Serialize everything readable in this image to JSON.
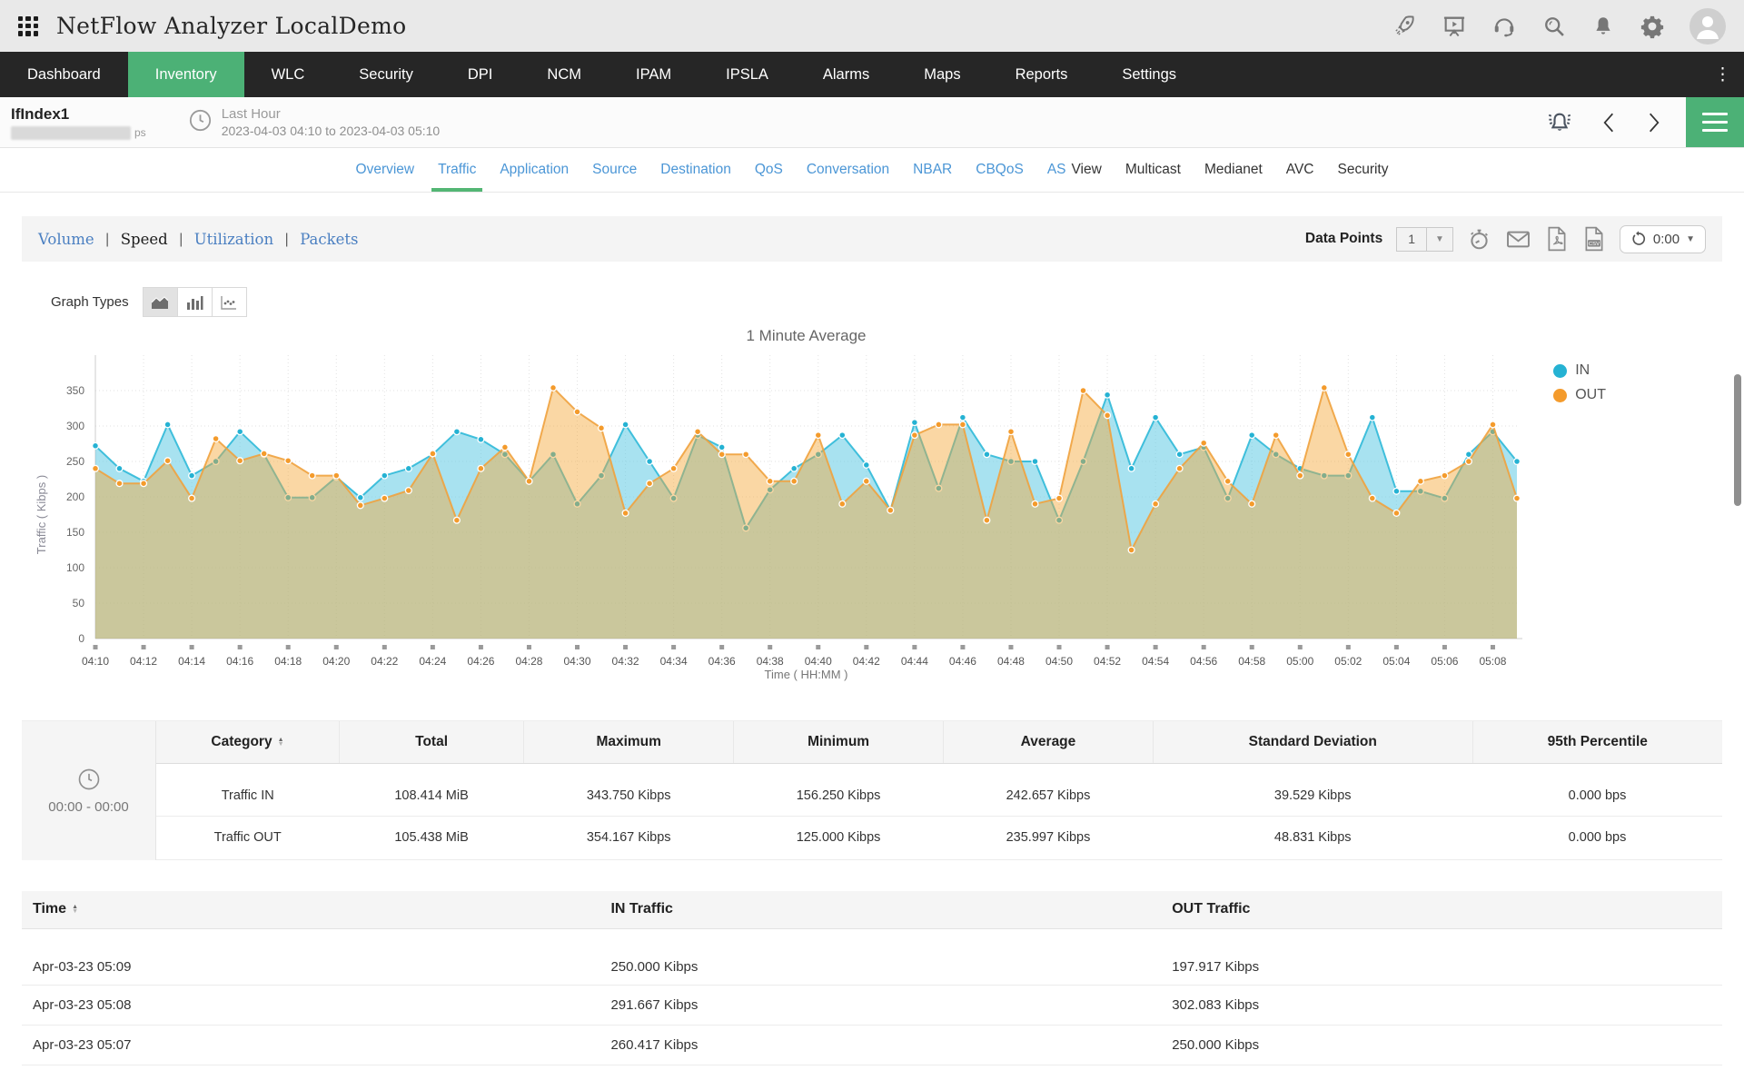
{
  "topbar": {
    "title": "NetFlow Analyzer LocalDemo"
  },
  "navbar": {
    "items": [
      "Dashboard",
      "Inventory",
      "WLC",
      "Security",
      "DPI",
      "NCM",
      "IPAM",
      "IPSLA",
      "Alarms",
      "Maps",
      "Reports",
      "Settings"
    ],
    "active": "Inventory"
  },
  "subheader": {
    "interface_name": "IfIndex1",
    "speed_suffix": "ps",
    "period_label": "Last Hour",
    "period_range": "2023-04-03 04:10 to 2023-04-03 05:10"
  },
  "tabs": {
    "items": [
      {
        "label": "Overview",
        "style": "link"
      },
      {
        "label": "Traffic",
        "style": "link",
        "active": true
      },
      {
        "label": "Application",
        "style": "link"
      },
      {
        "label": "Source",
        "style": "link"
      },
      {
        "label": "Destination",
        "style": "link"
      },
      {
        "label": "QoS",
        "style": "link"
      },
      {
        "label": "Conversation",
        "style": "link"
      },
      {
        "label": "NBAR",
        "style": "link"
      },
      {
        "label": "CBQoS",
        "style": "link"
      },
      {
        "label": "AS",
        "style": "link",
        "tight": "r"
      },
      {
        "label": "View",
        "style": "plain",
        "tight": "l"
      },
      {
        "label": "Multicast",
        "style": "plain"
      },
      {
        "label": "Medianet",
        "style": "plain"
      },
      {
        "label": "AVC",
        "style": "plain"
      },
      {
        "label": "Security",
        "style": "plain"
      }
    ]
  },
  "toolbar": {
    "views": [
      {
        "label": "Volume",
        "style": "link"
      },
      {
        "label": "Speed",
        "style": "current"
      },
      {
        "label": "Utilization",
        "style": "link"
      },
      {
        "label": "Packets",
        "style": "link"
      }
    ],
    "data_points_label": "Data Points",
    "data_points_value": "1",
    "refresh_value": "0:00"
  },
  "graph": {
    "types_label": "Graph Types"
  },
  "chart_data": {
    "type": "area",
    "title": "1 Minute Average",
    "ylabel": "Traffic ( Kibps )",
    "xlabel": "Time ( HH:MM )",
    "ylim": [
      0,
      400
    ],
    "grid": true,
    "legend_position": "right",
    "x_tick_every": 2,
    "x": [
      "04:10",
      "04:11",
      "04:12",
      "04:13",
      "04:14",
      "04:15",
      "04:16",
      "04:17",
      "04:18",
      "04:19",
      "04:20",
      "04:21",
      "04:22",
      "04:23",
      "04:24",
      "04:25",
      "04:26",
      "04:27",
      "04:28",
      "04:29",
      "04:30",
      "04:31",
      "04:32",
      "04:33",
      "04:34",
      "04:35",
      "04:36",
      "04:37",
      "04:38",
      "04:39",
      "04:40",
      "04:41",
      "04:42",
      "04:43",
      "04:44",
      "04:45",
      "04:46",
      "04:47",
      "04:48",
      "04:49",
      "04:50",
      "04:51",
      "04:52",
      "04:53",
      "04:54",
      "04:55",
      "04:56",
      "04:57",
      "04:58",
      "04:59",
      "05:00",
      "05:01",
      "05:02",
      "05:03",
      "05:04",
      "05:05",
      "05:06",
      "05:07",
      "05:08",
      "05:09"
    ],
    "series": [
      {
        "name": "IN",
        "color": "#25b2d3",
        "line_color": "#2fb9d8",
        "fill": "rgba(97,203,228,0.55)",
        "values": [
          272,
          240,
          222,
          302,
          230,
          250,
          292,
          260,
          199,
          199,
          228,
          199,
          230,
          240,
          260,
          292,
          281,
          260,
          222,
          260,
          190,
          230,
          302,
          250,
          198,
          287,
          270,
          156,
          210,
          240,
          260,
          287,
          245,
          181,
          305,
          212,
          312,
          260,
          250,
          250,
          167,
          250,
          344,
          240,
          312,
          260,
          270,
          198,
          287,
          260,
          240,
          230,
          230,
          312,
          208,
          208,
          198,
          260,
          292,
          250
        ]
      },
      {
        "name": "OUT",
        "color": "#f49b2c",
        "line_color": "#f0a23e",
        "fill": "rgba(245,166,53,0.45)",
        "values": [
          240,
          219,
          219,
          251,
          198,
          282,
          251,
          261,
          251,
          230,
          230,
          188,
          198,
          209,
          261,
          167,
          240,
          270,
          222,
          354,
          320,
          297,
          177,
          219,
          240,
          292,
          260,
          260,
          222,
          222,
          287,
          190,
          222,
          181,
          287,
          302,
          302,
          167,
          292,
          190,
          198,
          350,
          315,
          125,
          190,
          240,
          276,
          222,
          190,
          287,
          230,
          354,
          260,
          198,
          177,
          222,
          230,
          250,
          302,
          198
        ]
      }
    ]
  },
  "summary_table": {
    "time_range": "00:00 - 00:00",
    "columns": [
      "Category",
      "Total",
      "Maximum",
      "Minimum",
      "Average",
      "Standard Deviation",
      "95th Percentile"
    ],
    "rows": [
      [
        "Traffic IN",
        "108.414 MiB",
        "343.750 Kibps",
        "156.250 Kibps",
        "242.657 Kibps",
        "39.529 Kibps",
        "0.000 bps"
      ],
      [
        "Traffic OUT",
        "105.438 MiB",
        "354.167 Kibps",
        "125.000 Kibps",
        "235.997 Kibps",
        "48.831 Kibps",
        "0.000 bps"
      ]
    ]
  },
  "time_table": {
    "columns": [
      "Time",
      "IN Traffic",
      "OUT Traffic"
    ],
    "rows": [
      [
        "Apr-03-23 05:09",
        "250.000 Kibps",
        "197.917 Kibps"
      ],
      [
        "Apr-03-23 05:08",
        "291.667 Kibps",
        "302.083 Kibps"
      ],
      [
        "Apr-03-23 05:07",
        "260.417 Kibps",
        "250.000 Kibps"
      ]
    ]
  },
  "colors": {
    "accent_green": "#4cb176",
    "nav_dark": "#262626",
    "tab_link_blue": "#4b96d6",
    "serif_link_blue": "#4a7fc1",
    "in_series": "#25b2d3",
    "out_series": "#f49b2c"
  }
}
